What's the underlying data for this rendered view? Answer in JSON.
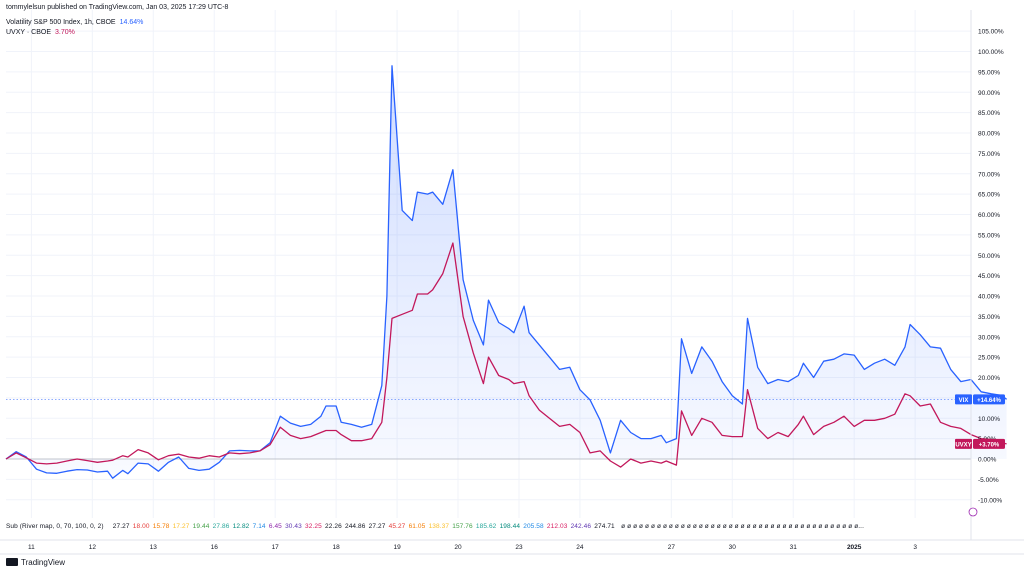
{
  "publisher_line": "tommylelsun published on TradingView.com, Jan 03, 2025 17:29 UTC-8",
  "legend": [
    {
      "label": "Volatility S&P 500 Index, 1h, CBOE",
      "value": "14.64%",
      "color": "#2962ff"
    },
    {
      "label": "UVXY · CBOE",
      "value": "3.70%",
      "color": "#c2185b"
    }
  ],
  "price_tags": [
    {
      "text": "VIX",
      "value_text": "+14.64%",
      "color": "#2962ff"
    },
    {
      "text": "UVXY",
      "value_text": "+3.70%",
      "color": "#c2185b"
    }
  ],
  "indicator": {
    "label": "Sub (River map, 0, 70, 100, 0, 2)",
    "values": [
      {
        "t": "27.27",
        "c": "#131722"
      },
      {
        "t": "18.00",
        "c": "#e53935"
      },
      {
        "t": "15.78",
        "c": "#f57c00"
      },
      {
        "t": "17.27",
        "c": "#fbc02d"
      },
      {
        "t": "19.44",
        "c": "#43a047"
      },
      {
        "t": "27.86",
        "c": "#26a69a"
      },
      {
        "t": "12.82",
        "c": "#00897b"
      },
      {
        "t": "7.14",
        "c": "#1e88e5"
      },
      {
        "t": "6.45",
        "c": "#8e24aa"
      },
      {
        "t": "30.43",
        "c": "#5e35b1"
      },
      {
        "t": "32.25",
        "c": "#d81b60"
      },
      {
        "t": "22.26",
        "c": "#131722"
      },
      {
        "t": "244.86",
        "c": "#131722"
      },
      {
        "t": "27.27",
        "c": "#131722"
      },
      {
        "t": "45.27",
        "c": "#e53935"
      },
      {
        "t": "61.05",
        "c": "#f57c00"
      },
      {
        "t": "138.37",
        "c": "#fbc02d"
      },
      {
        "t": "157.76",
        "c": "#43a047"
      },
      {
        "t": "185.62",
        "c": "#26a69a"
      },
      {
        "t": "198.44",
        "c": "#00897b"
      },
      {
        "t": "205.58",
        "c": "#1e88e5"
      },
      {
        "t": "212.03",
        "c": "#d81b60"
      },
      {
        "t": "242.46",
        "c": "#5e35b1"
      },
      {
        "t": "274.71",
        "c": "#131722"
      }
    ],
    "trailing": "ø ø ø ø ø ø ø ø ø ø ø ø ø ø ø ø ø ø ø ø ø ø ø ø ø ø ø ø ø ø ø ø ø ø ø ø ø ø ø ø..."
  },
  "footer": {
    "brand": "TradingView"
  },
  "chart_data": {
    "type": "line",
    "y_unit": "%",
    "ylim": [
      -12.5,
      107.5
    ],
    "y_ticks": [
      "105.00%",
      "100.00%",
      "95.00%",
      "90.00%",
      "85.00%",
      "80.00%",
      "75.00%",
      "70.00%",
      "65.00%",
      "60.00%",
      "55.00%",
      "50.00%",
      "45.00%",
      "40.00%",
      "35.00%",
      "30.00%",
      "25.00%",
      "20.00%",
      "15.00%",
      "10.00%",
      "5.00%",
      "0.00%",
      "-5.00%",
      "-10.00%"
    ],
    "x_ticks": [
      {
        "label": "11",
        "i": 5
      },
      {
        "label": "12",
        "i": 17
      },
      {
        "label": "13",
        "i": 29
      },
      {
        "label": "16",
        "i": 41
      },
      {
        "label": "17",
        "i": 53
      },
      {
        "label": "18",
        "i": 65
      },
      {
        "label": "19",
        "i": 77
      },
      {
        "label": "20",
        "i": 89
      },
      {
        "label": "23",
        "i": 101
      },
      {
        "label": "24",
        "i": 113
      },
      {
        "label": "27",
        "i": 131
      },
      {
        "label": "30",
        "i": 143
      },
      {
        "label": "31",
        "i": 155
      },
      {
        "label": "2025",
        "i": 167
      },
      {
        "label": "3",
        "i": 179
      }
    ],
    "n_points": 190,
    "series": [
      {
        "name": "VIX",
        "color": "#2962ff",
        "points": [
          [
            0,
            0
          ],
          [
            2,
            1.8
          ],
          [
            4,
            0.5
          ],
          [
            6,
            -2.5
          ],
          [
            8,
            -3.4
          ],
          [
            10,
            -3.5
          ],
          [
            12,
            -3.0
          ],
          [
            14,
            -2.6
          ],
          [
            16,
            -2.7
          ],
          [
            18,
            -3.2
          ],
          [
            20,
            -3.0
          ],
          [
            21,
            -4.7
          ],
          [
            23,
            -2.8
          ],
          [
            24,
            -3.6
          ],
          [
            26,
            -1.0
          ],
          [
            28,
            -1.2
          ],
          [
            30,
            -3.0
          ],
          [
            32,
            -0.8
          ],
          [
            34,
            0.5
          ],
          [
            36,
            -2.3
          ],
          [
            38,
            -2.8
          ],
          [
            40,
            -2.5
          ],
          [
            42,
            -0.8
          ],
          [
            44,
            2.0
          ],
          [
            46,
            2.1
          ],
          [
            48,
            2.0
          ],
          [
            50,
            2.0
          ],
          [
            52,
            4.0
          ],
          [
            54,
            10.5
          ],
          [
            56,
            8.8
          ],
          [
            58,
            8.0
          ],
          [
            60,
            8.5
          ],
          [
            62,
            10.5
          ],
          [
            63,
            13.0
          ],
          [
            65,
            13.0
          ],
          [
            66,
            9.0
          ],
          [
            68,
            8.5
          ],
          [
            70,
            7.8
          ],
          [
            72,
            8.5
          ],
          [
            74,
            18.0
          ],
          [
            75,
            40.0
          ],
          [
            76,
            96.5
          ],
          [
            78,
            61.0
          ],
          [
            80,
            58.5
          ],
          [
            81,
            65.5
          ],
          [
            83,
            65.0
          ],
          [
            84,
            65.5
          ],
          [
            86,
            62.5
          ],
          [
            88,
            71.0
          ],
          [
            90,
            44.0
          ],
          [
            92,
            34.0
          ],
          [
            94,
            28.0
          ],
          [
            95,
            39.0
          ],
          [
            97,
            33.5
          ],
          [
            99,
            32.0
          ],
          [
            100,
            31.0
          ],
          [
            102,
            37.5
          ],
          [
            103,
            31.0
          ],
          [
            105,
            28.0
          ],
          [
            107,
            25.0
          ],
          [
            109,
            22.0
          ],
          [
            111,
            22.5
          ],
          [
            113,
            17.0
          ],
          [
            115,
            14.5
          ],
          [
            117,
            9.5
          ],
          [
            119,
            1.5
          ],
          [
            121,
            9.5
          ],
          [
            123,
            6.5
          ],
          [
            125,
            5.0
          ],
          [
            127,
            5.0
          ],
          [
            129,
            5.8
          ],
          [
            130,
            4.0
          ],
          [
            132,
            5.0
          ],
          [
            133,
            29.5
          ],
          [
            135,
            21.0
          ],
          [
            137,
            27.5
          ],
          [
            139,
            24.0
          ],
          [
            141,
            19.0
          ],
          [
            143,
            15.5
          ],
          [
            145,
            13.5
          ],
          [
            146,
            34.5
          ],
          [
            148,
            22.5
          ],
          [
            150,
            18.5
          ],
          [
            152,
            19.5
          ],
          [
            154,
            19.0
          ],
          [
            156,
            20.5
          ],
          [
            157,
            23.5
          ],
          [
            159,
            20.0
          ],
          [
            161,
            24.0
          ],
          [
            163,
            24.5
          ],
          [
            165,
            25.8
          ],
          [
            167,
            25.5
          ],
          [
            169,
            22.0
          ],
          [
            171,
            23.5
          ],
          [
            173,
            24.5
          ],
          [
            175,
            23.0
          ],
          [
            177,
            27.5
          ],
          [
            178,
            33.0
          ],
          [
            180,
            30.5
          ],
          [
            182,
            27.5
          ],
          [
            184,
            27.2
          ],
          [
            186,
            22.0
          ],
          [
            188,
            19.0
          ],
          [
            190,
            19.5
          ],
          [
            192,
            16.5
          ],
          [
            194,
            16.0
          ],
          [
            196,
            15.6
          ],
          [
            197,
            14.64
          ]
        ]
      },
      {
        "name": "UVXY",
        "color": "#c2185b",
        "points": [
          [
            0,
            0
          ],
          [
            2,
            1.5
          ],
          [
            4,
            0.3
          ],
          [
            6,
            -1.0
          ],
          [
            8,
            -1.2
          ],
          [
            10,
            -1.0
          ],
          [
            12,
            -0.5
          ],
          [
            14,
            0.0
          ],
          [
            16,
            -0.4
          ],
          [
            18,
            -0.8
          ],
          [
            20,
            -0.5
          ],
          [
            21,
            -0.3
          ],
          [
            23,
            0.8
          ],
          [
            24,
            0.5
          ],
          [
            26,
            2.3
          ],
          [
            28,
            1.5
          ],
          [
            30,
            -0.2
          ],
          [
            32,
            0.8
          ],
          [
            34,
            1.2
          ],
          [
            36,
            0.5
          ],
          [
            38,
            0.2
          ],
          [
            40,
            0.8
          ],
          [
            42,
            0.5
          ],
          [
            44,
            1.5
          ],
          [
            46,
            1.3
          ],
          [
            48,
            1.5
          ],
          [
            50,
            2.0
          ],
          [
            52,
            3.5
          ],
          [
            54,
            7.8
          ],
          [
            56,
            5.8
          ],
          [
            58,
            5.0
          ],
          [
            60,
            5.5
          ],
          [
            62,
            6.5
          ],
          [
            63,
            7.0
          ],
          [
            65,
            7.0
          ],
          [
            66,
            6.0
          ],
          [
            68,
            4.5
          ],
          [
            70,
            4.5
          ],
          [
            72,
            5.0
          ],
          [
            74,
            9.0
          ],
          [
            75,
            20.0
          ],
          [
            76,
            34.5
          ],
          [
            78,
            35.5
          ],
          [
            80,
            36.5
          ],
          [
            81,
            40.5
          ],
          [
            83,
            40.5
          ],
          [
            84,
            41.5
          ],
          [
            86,
            45.5
          ],
          [
            88,
            53.0
          ],
          [
            90,
            35.0
          ],
          [
            92,
            26.0
          ],
          [
            94,
            18.5
          ],
          [
            95,
            25.0
          ],
          [
            97,
            20.5
          ],
          [
            99,
            19.5
          ],
          [
            100,
            18.5
          ],
          [
            102,
            19.0
          ],
          [
            103,
            15.5
          ],
          [
            105,
            12.0
          ],
          [
            107,
            10.0
          ],
          [
            109,
            8.0
          ],
          [
            111,
            8.5
          ],
          [
            113,
            6.5
          ],
          [
            115,
            1.5
          ],
          [
            117,
            2.0
          ],
          [
            119,
            -0.5
          ],
          [
            121,
            -2.0
          ],
          [
            123,
            0.0
          ],
          [
            125,
            -1.0
          ],
          [
            127,
            -0.5
          ],
          [
            129,
            -1.0
          ],
          [
            130,
            -0.5
          ],
          [
            132,
            -1.5
          ],
          [
            133,
            11.8
          ],
          [
            135,
            5.8
          ],
          [
            137,
            10.0
          ],
          [
            139,
            9.0
          ],
          [
            141,
            5.8
          ],
          [
            143,
            5.5
          ],
          [
            145,
            5.5
          ],
          [
            146,
            17.0
          ],
          [
            148,
            7.5
          ],
          [
            150,
            5.0
          ],
          [
            152,
            6.5
          ],
          [
            154,
            5.5
          ],
          [
            156,
            8.5
          ],
          [
            157,
            10.5
          ],
          [
            159,
            6.0
          ],
          [
            161,
            8.0
          ],
          [
            163,
            9.0
          ],
          [
            165,
            10.5
          ],
          [
            167,
            8.0
          ],
          [
            169,
            9.5
          ],
          [
            171,
            9.5
          ],
          [
            173,
            10.0
          ],
          [
            175,
            11.0
          ],
          [
            177,
            16.0
          ],
          [
            178,
            15.5
          ],
          [
            180,
            13.0
          ],
          [
            182,
            13.5
          ],
          [
            184,
            9.0
          ],
          [
            186,
            8.0
          ],
          [
            188,
            7.5
          ],
          [
            190,
            6.0
          ],
          [
            192,
            5.0
          ],
          [
            194,
            4.8
          ],
          [
            196,
            4.0
          ],
          [
            197,
            3.7
          ]
        ]
      }
    ],
    "grid": true,
    "legend_position": "top-left"
  }
}
